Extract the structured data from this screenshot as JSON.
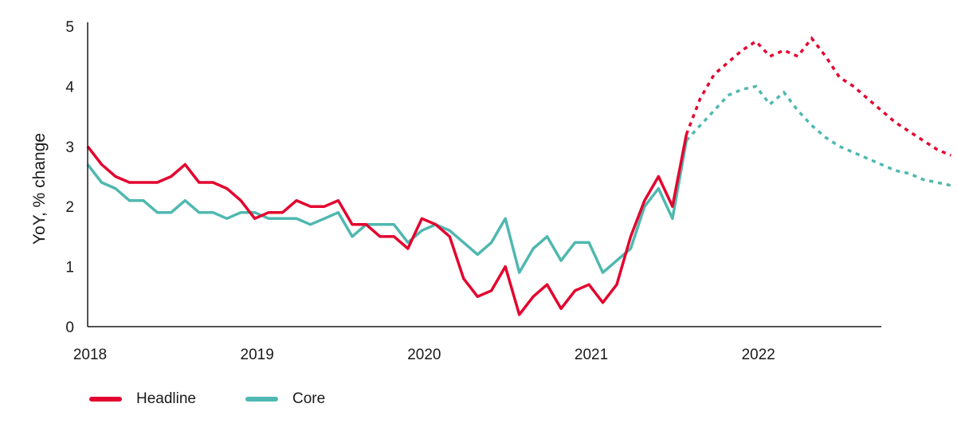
{
  "chart_data": {
    "type": "line",
    "ylabel": "YoY, % change",
    "xlabel": "",
    "ylim": [
      0,
      5
    ],
    "yticks": [
      "0",
      "1",
      "2",
      "3",
      "4",
      "5"
    ],
    "xticks": [
      "2018",
      "2019",
      "2020",
      "2021",
      "2022"
    ],
    "x_start": "2018-01",
    "x_end": "2022-10",
    "grid": false,
    "legend_position": "bottom-left",
    "series": [
      {
        "name": "Headline",
        "color": "#e4032e",
        "actual": [
          3.0,
          2.7,
          2.5,
          2.4,
          2.4,
          2.4,
          2.5,
          2.7,
          2.4,
          2.4,
          2.3,
          2.1,
          1.8,
          1.9,
          1.9,
          2.1,
          2.0,
          2.0,
          2.1,
          1.7,
          1.7,
          1.5,
          1.5,
          1.3,
          1.8,
          1.7,
          1.5,
          0.8,
          0.5,
          0.6,
          1.0,
          0.2,
          0.5,
          0.7,
          0.3,
          0.6,
          0.7,
          0.4,
          0.7,
          1.5,
          2.1,
          2.5,
          2.0,
          3.2
        ],
        "forecast_start_index": 43,
        "forecast": [
          3.2,
          3.8,
          4.2,
          4.4,
          4.6,
          4.75,
          4.5,
          4.6,
          4.5,
          4.8,
          4.5,
          4.15,
          4.0,
          3.8,
          3.6,
          3.4,
          3.25,
          3.1,
          2.95,
          2.85
        ]
      },
      {
        "name": "Core",
        "color": "#4fb8b0",
        "actual": [
          2.7,
          2.4,
          2.3,
          2.1,
          2.1,
          1.9,
          1.9,
          2.1,
          1.9,
          1.9,
          1.8,
          1.9,
          1.9,
          1.8,
          1.8,
          1.8,
          1.7,
          1.8,
          1.9,
          1.5,
          1.7,
          1.7,
          1.7,
          1.4,
          1.6,
          1.7,
          1.6,
          1.4,
          1.2,
          1.4,
          1.8,
          0.9,
          1.3,
          1.5,
          1.1,
          1.4,
          1.4,
          0.9,
          1.1,
          1.3,
          2.0,
          2.3,
          1.8,
          3.1
        ],
        "forecast_start_index": 43,
        "forecast": [
          3.1,
          3.35,
          3.6,
          3.85,
          3.95,
          4.0,
          3.7,
          3.9,
          3.6,
          3.35,
          3.15,
          3.0,
          2.9,
          2.8,
          2.7,
          2.6,
          2.55,
          2.45,
          2.4,
          2.35
        ]
      }
    ]
  }
}
